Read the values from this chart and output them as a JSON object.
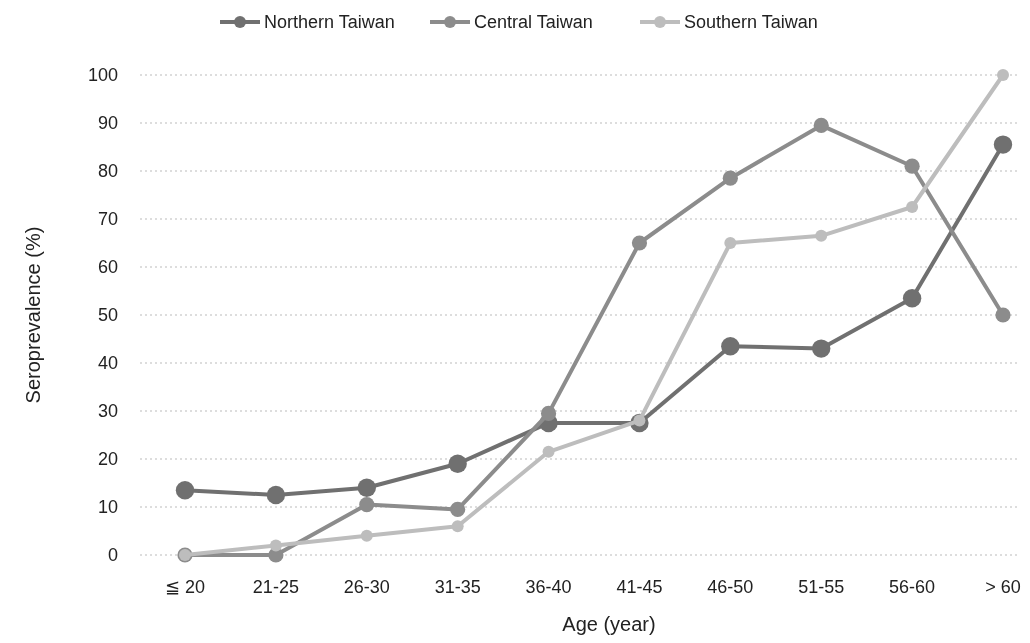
{
  "chart_data": {
    "type": "line",
    "xlabel": "Age (year)",
    "ylabel": "Seroprevalence (%)",
    "categories": [
      "≦ 20",
      "21-25",
      "26-30",
      "31-35",
      "36-40",
      "41-45",
      "46-50",
      "51-55",
      "56-60",
      "> 60"
    ],
    "series": [
      {
        "name": "Northern Taiwan",
        "color": "#707070",
        "values": [
          13.5,
          12.5,
          14,
          19,
          27.5,
          27.5,
          43.5,
          43,
          53.5,
          85.5
        ]
      },
      {
        "name": "Central Taiwan",
        "color": "#8c8c8c",
        "values": [
          0,
          0,
          10.5,
          9.5,
          29.5,
          65,
          78.5,
          89.5,
          81,
          50
        ]
      },
      {
        "name": "Southern Taiwan",
        "color": "#bdbdbd",
        "values": [
          0,
          2,
          4,
          6,
          21.5,
          28,
          65,
          66.5,
          72.5,
          100
        ]
      }
    ],
    "ylim": [
      0,
      100
    ],
    "yticks": [
      0,
      10,
      20,
      30,
      40,
      50,
      60,
      70,
      80,
      90,
      100
    ],
    "grid": "y",
    "legend": "top",
    "marker": "circle",
    "line_style": "solid"
  }
}
